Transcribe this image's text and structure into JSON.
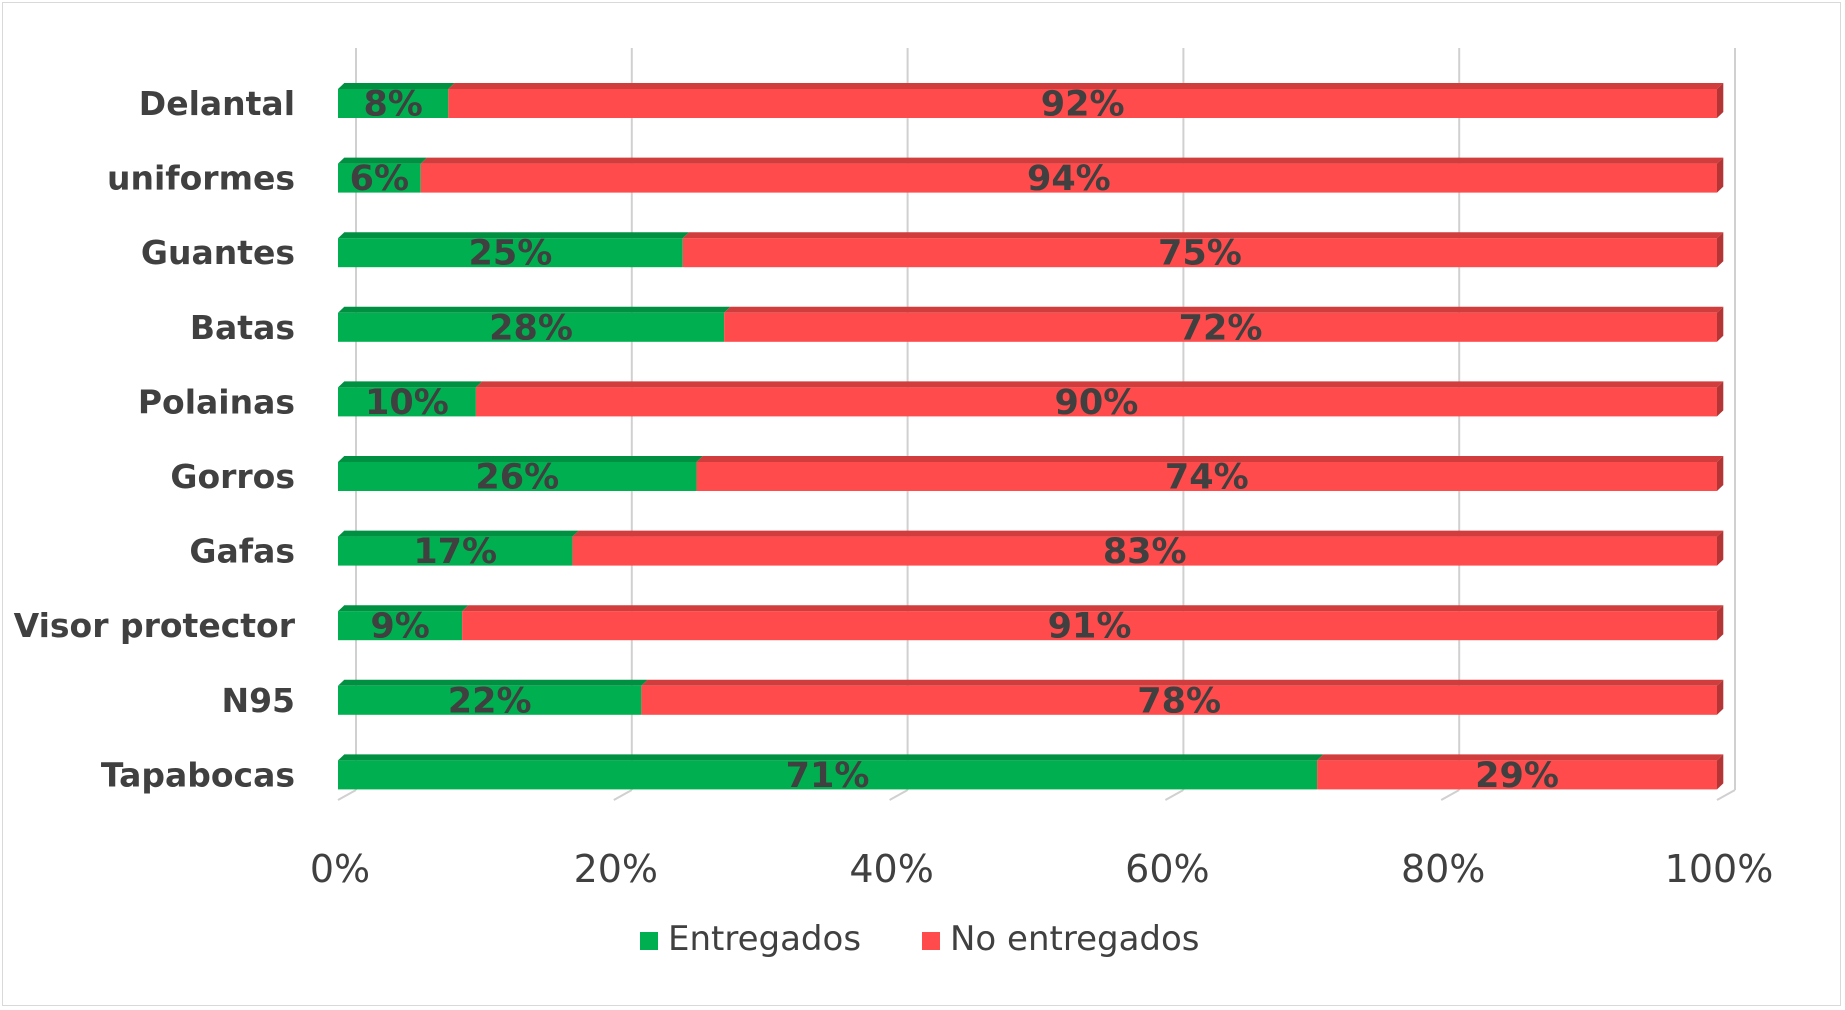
{
  "chart_data": {
    "type": "bar",
    "orientation": "horizontal",
    "stacked": "percent",
    "categories": [
      "Delantal",
      "uniformes",
      "Guantes",
      "Batas",
      "Polainas",
      "Gorros",
      "Gafas",
      "Visor protector",
      "N95",
      "Tapabocas"
    ],
    "series": [
      {
        "name": "Entregados",
        "color": "#00b050",
        "values": [
          8,
          6,
          25,
          28,
          10,
          26,
          17,
          9,
          22,
          71
        ]
      },
      {
        "name": "No entregados",
        "color": "#ff4b4b",
        "values": [
          92,
          94,
          75,
          72,
          90,
          74,
          83,
          91,
          78,
          29
        ]
      }
    ],
    "data_labels": [
      [
        "8%",
        "6%",
        "25%",
        "28%",
        "10%",
        "26%",
        "17%",
        "9%",
        "22%",
        "71%"
      ],
      [
        "92%",
        "94%",
        "75%",
        "72%",
        "90%",
        "74%",
        "83%",
        "91%",
        "78%",
        "29%"
      ]
    ],
    "x_ticks": [
      "0%",
      "20%",
      "40%",
      "60%",
      "80%",
      "100%"
    ],
    "xlim": [
      0,
      100
    ],
    "xlabel": "",
    "ylabel": "",
    "grid": true,
    "legend_position": "bottom"
  }
}
